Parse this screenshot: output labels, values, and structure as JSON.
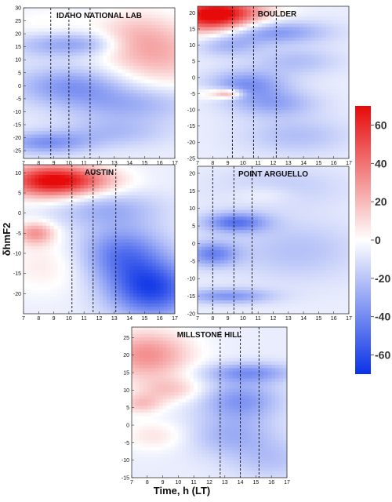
{
  "figure": {
    "ylabel": "δhmF2",
    "xlabel": "Time, h (LT)"
  },
  "colorbar": {
    "ticks": [
      60,
      40,
      20,
      0,
      -20,
      -40,
      -60
    ],
    "range": [
      -70,
      70
    ],
    "colors": {
      "negative": "#0a32e6",
      "neutral": "#ffffff",
      "positive": "#e60a0a"
    }
  },
  "chart_data": [
    {
      "type": "heatmap",
      "title": "IDAHO NATIONAL LAB",
      "xlim": [
        7,
        17
      ],
      "ylim": [
        -28,
        30
      ],
      "xticks": [
        7,
        8,
        9,
        10,
        11,
        12,
        13,
        14,
        15,
        16,
        17
      ],
      "yticks": [
        -25,
        -20,
        -15,
        -10,
        -5,
        0,
        5,
        10,
        15,
        20,
        25,
        30
      ],
      "dashed_times": [
        8.8,
        10.0,
        11.4
      ],
      "blobs": [
        {
          "x": 16.0,
          "y": 12,
          "v": 26,
          "sx": 2.4,
          "sy": 9
        },
        {
          "x": 14.2,
          "y": 20,
          "v": 14,
          "sx": 1.8,
          "sy": 7
        },
        {
          "x": 8.5,
          "y": 23,
          "v": 8,
          "sx": 2.0,
          "sy": 5
        },
        {
          "x": 9.0,
          "y": 16,
          "v": -22,
          "sx": 2.0,
          "sy": 3.5
        },
        {
          "x": 11.5,
          "y": 16,
          "v": -14,
          "sx": 1.5,
          "sy": 3
        },
        {
          "x": 10.0,
          "y": 0,
          "v": -28,
          "sx": 2.5,
          "sy": 5
        },
        {
          "x": 14.0,
          "y": -7,
          "v": -22,
          "sx": 3.0,
          "sy": 5
        },
        {
          "x": 8.5,
          "y": -22,
          "v": -30,
          "sx": 2.0,
          "sy": 3
        },
        {
          "x": 13.0,
          "y": -18,
          "v": -16,
          "sx": 2.5,
          "sy": 4
        }
      ]
    },
    {
      "type": "heatmap",
      "title": "BOULDER",
      "xlim": [
        7,
        17
      ],
      "ylim": [
        -25,
        22
      ],
      "xticks": [
        7,
        8,
        9,
        10,
        11,
        12,
        13,
        14,
        15,
        16,
        17
      ],
      "yticks": [
        -25,
        -20,
        -15,
        -10,
        -5,
        0,
        5,
        10,
        15,
        20
      ],
      "dashed_times": [
        9.3,
        10.7,
        12.2
      ],
      "blobs": [
        {
          "x": 7.8,
          "y": 19,
          "v": 65,
          "sx": 1.8,
          "sy": 4
        },
        {
          "x": 9.5,
          "y": 20,
          "v": 30,
          "sx": 2.0,
          "sy": 3
        },
        {
          "x": 9.0,
          "y": -5,
          "v": 40,
          "sx": 0.7,
          "sy": 1.0
        },
        {
          "x": 7.6,
          "y": -5,
          "v": 10,
          "sx": 0.8,
          "sy": 1.5
        },
        {
          "x": 12.0,
          "y": 14,
          "v": -30,
          "sx": 2.5,
          "sy": 2.5
        },
        {
          "x": 10.3,
          "y": -2,
          "v": -30,
          "sx": 1.8,
          "sy": 3
        },
        {
          "x": 12.0,
          "y": -8,
          "v": -24,
          "sx": 2.0,
          "sy": 3
        },
        {
          "x": 13.5,
          "y": 5,
          "v": -16,
          "sx": 2.0,
          "sy": 3
        },
        {
          "x": 13.5,
          "y": -18,
          "v": -16,
          "sx": 2.5,
          "sy": 4
        },
        {
          "x": 9.0,
          "y": 10,
          "v": -20,
          "sx": 1.5,
          "sy": 2.5
        }
      ]
    },
    {
      "type": "heatmap",
      "title": "AUSTIN",
      "xlim": [
        7,
        17
      ],
      "ylim": [
        -25,
        12
      ],
      "xticks": [
        7,
        8,
        9,
        10,
        11,
        12,
        13,
        14,
        15,
        16,
        17
      ],
      "yticks": [
        -20,
        -15,
        -10,
        -5,
        0,
        5,
        10
      ],
      "dashed_times": [
        10.2,
        11.6,
        13.1
      ],
      "blobs": [
        {
          "x": 8.5,
          "y": 8,
          "v": 65,
          "sx": 2.0,
          "sy": 3
        },
        {
          "x": 11.0,
          "y": 8,
          "v": 30,
          "sx": 2.0,
          "sy": 2.5
        },
        {
          "x": 7.8,
          "y": -5,
          "v": 35,
          "sx": 0.9,
          "sy": 2.0
        },
        {
          "x": 8.5,
          "y": -13,
          "v": 12,
          "sx": 2.0,
          "sy": 5
        },
        {
          "x": 13.5,
          "y": -10,
          "v": -38,
          "sx": 2.0,
          "sy": 5
        },
        {
          "x": 15.5,
          "y": -19,
          "v": -55,
          "sx": 2.0,
          "sy": 5
        },
        {
          "x": 12.5,
          "y": 1,
          "v": -20,
          "sx": 2.5,
          "sy": 3
        }
      ]
    },
    {
      "type": "heatmap",
      "title": "POINT ARGUELLO",
      "xlim": [
        7,
        17
      ],
      "ylim": [
        -20,
        22
      ],
      "xticks": [
        7,
        8,
        9,
        10,
        11,
        12,
        13,
        14,
        15,
        16,
        17
      ],
      "yticks": [
        -20,
        -15,
        -10,
        -5,
        0,
        5,
        10,
        15,
        20
      ],
      "dashed_times": [
        8.0,
        9.4,
        10.6
      ],
      "blobs": [
        {
          "x": 9.5,
          "y": 6,
          "v": -40,
          "sx": 1.5,
          "sy": 2
        },
        {
          "x": 8.0,
          "y": -3,
          "v": -35,
          "sx": 1.2,
          "sy": 2.5
        },
        {
          "x": 9.0,
          "y": -15,
          "v": -30,
          "sx": 2.0,
          "sy": 1.5
        },
        {
          "x": 13.5,
          "y": -2,
          "v": -15,
          "sx": 3.0,
          "sy": 6
        },
        {
          "x": 11.5,
          "y": 14,
          "v": 10,
          "sx": 1.5,
          "sy": 2
        },
        {
          "x": 12.5,
          "y": 16,
          "v": -12,
          "sx": 3.0,
          "sy": 4
        }
      ]
    },
    {
      "type": "heatmap",
      "title": "MILLSTONE HILL",
      "xlim": [
        7,
        17
      ],
      "ylim": [
        -15,
        28
      ],
      "xticks": [
        7,
        8,
        9,
        10,
        11,
        12,
        13,
        14,
        15,
        16,
        17
      ],
      "yticks": [
        -15,
        -10,
        -5,
        0,
        5,
        10,
        15,
        20,
        25
      ],
      "dashed_times": [
        12.7,
        14.0,
        15.2
      ],
      "blobs": [
        {
          "x": 8.0,
          "y": 20,
          "v": 38,
          "sx": 2.0,
          "sy": 5
        },
        {
          "x": 7.6,
          "y": 6,
          "v": 22,
          "sx": 1.0,
          "sy": 2
        },
        {
          "x": 9.5,
          "y": 10,
          "v": 20,
          "sx": 1.5,
          "sy": 2.5
        },
        {
          "x": 8.5,
          "y": -3,
          "v": 14,
          "sx": 1.5,
          "sy": 3
        },
        {
          "x": 14.0,
          "y": 7,
          "v": -30,
          "sx": 1.8,
          "sy": 4
        },
        {
          "x": 14.5,
          "y": 15,
          "v": -30,
          "sx": 2.0,
          "sy": 2
        },
        {
          "x": 13.5,
          "y": -3,
          "v": -20,
          "sx": 2.0,
          "sy": 4
        },
        {
          "x": 16.0,
          "y": -10,
          "v": -14,
          "sx": 2.0,
          "sy": 4
        }
      ]
    }
  ]
}
